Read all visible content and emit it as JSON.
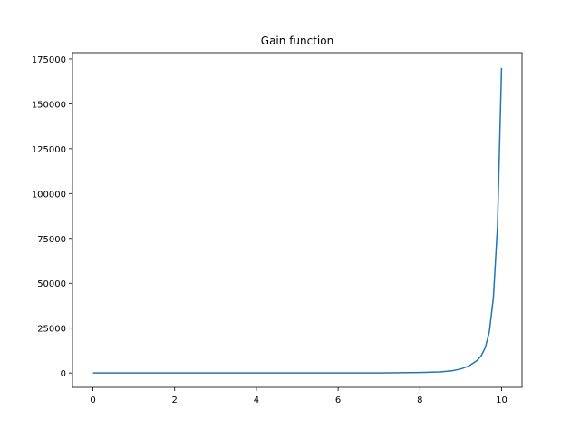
{
  "chart_data": {
    "type": "line",
    "title": "Gain function",
    "xlabel": "",
    "ylabel": "",
    "xlim": [
      -0.5,
      10.5
    ],
    "ylim": [
      -8000,
      178500
    ],
    "xticks": [
      0,
      2,
      4,
      6,
      8,
      10
    ],
    "yticks": [
      0,
      25000,
      50000,
      75000,
      100000,
      125000,
      150000,
      175000
    ],
    "grid": false,
    "series": [
      {
        "color": "#1f77b4",
        "x": [
          0,
          1,
          2,
          3,
          4,
          5,
          6,
          7,
          8,
          8.5,
          8.8,
          9.0,
          9.2,
          9.4,
          9.5,
          9.6,
          9.7,
          9.8,
          9.9,
          10.0
        ],
        "y": [
          0,
          0,
          0,
          0,
          0,
          0,
          0,
          0,
          300,
          600,
          1300,
          2200,
          3900,
          7000,
          9500,
          14000,
          23000,
          42000,
          82000,
          170000
        ]
      }
    ]
  }
}
